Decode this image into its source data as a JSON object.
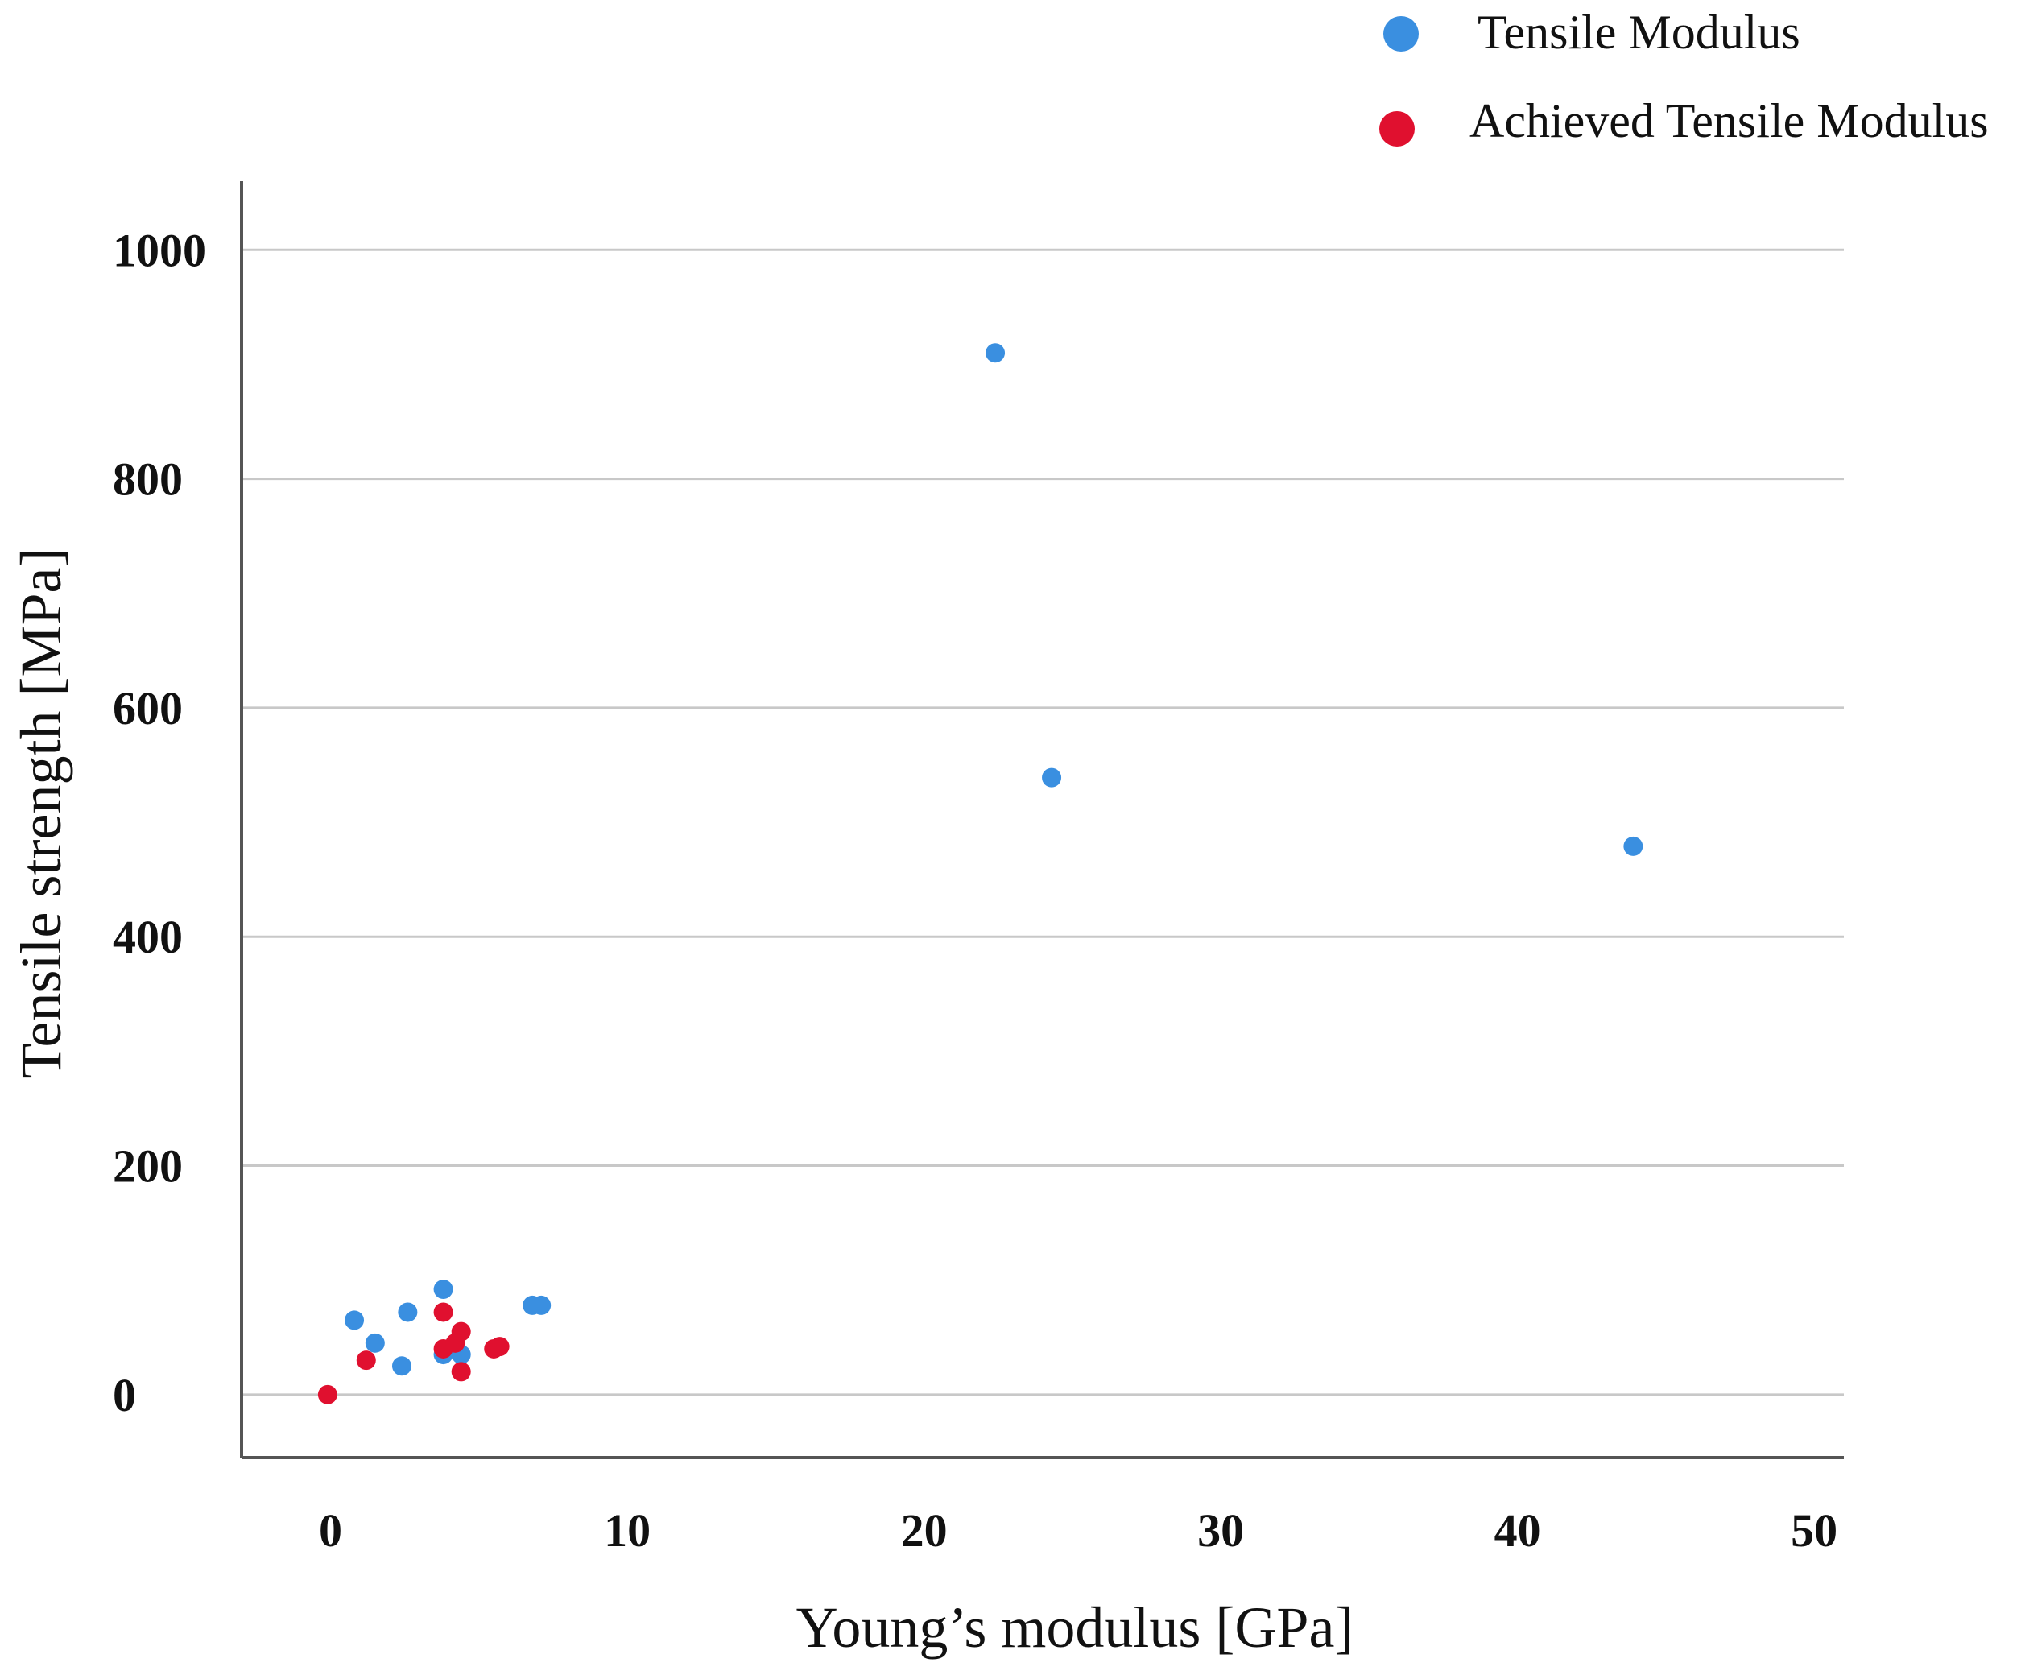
{
  "chart_data": {
    "type": "scatter",
    "title": "",
    "xlabel": "Young’s modulus [GPa]",
    "ylabel": "Tensile strength [MPa]",
    "xlim": [
      -3,
      51
    ],
    "ylim": [
      -55,
      1060
    ],
    "xticks": [
      0,
      10,
      20,
      30,
      40,
      50
    ],
    "yticks": [
      0,
      200,
      400,
      600,
      800,
      1000
    ],
    "grid": "horizontal",
    "legend_position": "top-right",
    "series": [
      {
        "name": "Tensile Modulus",
        "color": "#3a8fe0",
        "points": [
          {
            "x": 0.8,
            "y": 65
          },
          {
            "x": 1.5,
            "y": 45
          },
          {
            "x": 2.4,
            "y": 25
          },
          {
            "x": 2.6,
            "y": 72
          },
          {
            "x": 3.8,
            "y": 92
          },
          {
            "x": 3.8,
            "y": 35
          },
          {
            "x": 4.4,
            "y": 35
          },
          {
            "x": 6.8,
            "y": 78
          },
          {
            "x": 7.1,
            "y": 78
          },
          {
            "x": 22.4,
            "y": 910
          },
          {
            "x": 24.3,
            "y": 539
          },
          {
            "x": 43.9,
            "y": 479
          }
        ]
      },
      {
        "name": "Achieved Tensile Modulus",
        "color": "#e0102f",
        "points": [
          {
            "x": -0.1,
            "y": 0
          },
          {
            "x": 1.2,
            "y": 30
          },
          {
            "x": 3.8,
            "y": 72
          },
          {
            "x": 3.8,
            "y": 40
          },
          {
            "x": 4.2,
            "y": 45
          },
          {
            "x": 4.4,
            "y": 55
          },
          {
            "x": 4.4,
            "y": 20
          },
          {
            "x": 5.5,
            "y": 40
          },
          {
            "x": 5.7,
            "y": 42
          }
        ]
      }
    ]
  }
}
